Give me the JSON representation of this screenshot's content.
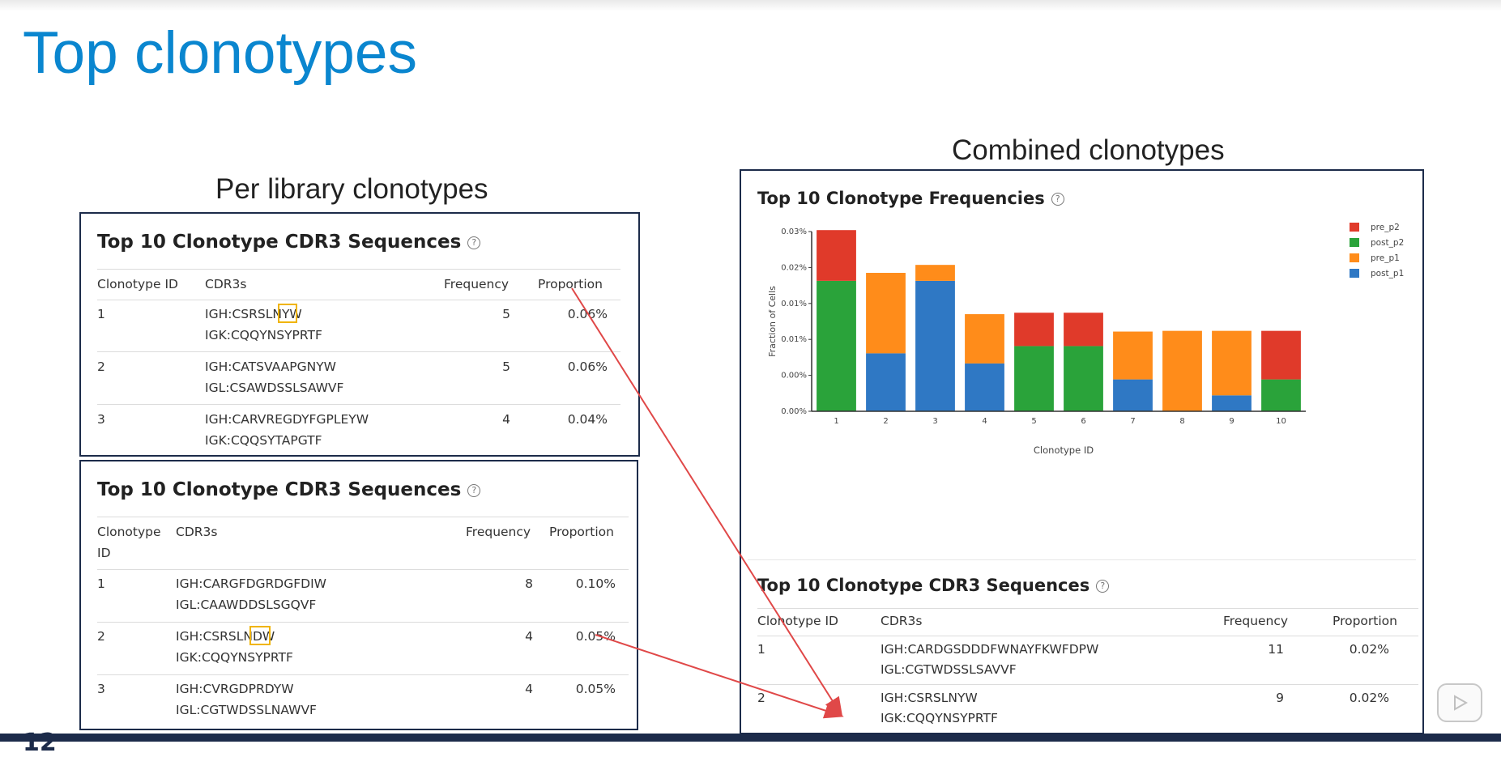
{
  "slide_title": "Top clonotypes",
  "left_section_title": "Per library clonotypes",
  "right_section_title": "Combined clonotypes",
  "help_glyph": "?",
  "table_a": {
    "title": "Top 10 Clonotype CDR3 Sequences",
    "headers": [
      "Clonotype ID",
      "CDR3s",
      "Frequency",
      "Proportion"
    ],
    "rows": [
      {
        "id": "1",
        "cdr3_1": "IGH:CSRSLNYW",
        "cdr3_2": "IGK:CQQYNSYPRTF",
        "freq": "5",
        "prop": "0.06%"
      },
      {
        "id": "2",
        "cdr3_1": "IGH:CATSVAAPGNYW",
        "cdr3_2": "IGL:CSAWDSSLSAWVF",
        "freq": "5",
        "prop": "0.06%"
      },
      {
        "id": "3",
        "cdr3_1": "IGH:CARVREGDYFGPLEYW",
        "cdr3_2": "IGK:CQQSYTAPGTF",
        "freq": "4",
        "prop": "0.04%"
      }
    ]
  },
  "table_b": {
    "title": "Top 10 Clonotype CDR3 Sequences",
    "headers": [
      "Clonotype",
      "CDR3s",
      "Frequency",
      "Proportion"
    ],
    "header_id_line2": "ID",
    "rows": [
      {
        "id": "1",
        "cdr3_1": "IGH:CARGFDGRDGFDIW",
        "cdr3_2": "IGL:CAAWDDSLSGQVF",
        "freq": "8",
        "prop": "0.10%"
      },
      {
        "id": "2",
        "cdr3_1": "IGH:CSRSLNDW",
        "cdr3_2": "IGK:CQQYNSYPRTF",
        "freq": "4",
        "prop": "0.05%"
      },
      {
        "id": "3",
        "cdr3_1": "IGH:CVRGDPRDYW",
        "cdr3_2": "IGL:CGTWDSSLNAWVF",
        "freq": "4",
        "prop": "0.05%"
      }
    ]
  },
  "table_c": {
    "title": "Top 10 Clonotype CDR3 Sequences",
    "headers": [
      "Clonotype ID",
      "CDR3s",
      "Frequency",
      "Proportion"
    ],
    "rows": [
      {
        "id": "1",
        "cdr3_1": "IGH:CARDGSDDDFWNAYFKWFDPW",
        "cdr3_2": "IGL:CGTWDSSLSAVVF",
        "freq": "11",
        "prop": "0.02%"
      },
      {
        "id": "2",
        "cdr3_1": "IGH:CSRSLNYW",
        "cdr3_2": "IGK:CQQYNSYPRTF",
        "freq": "9",
        "prop": "0.02%"
      }
    ]
  },
  "chart_title": "Top 10 Clonotype Frequencies",
  "chart_data": {
    "type": "bar",
    "stacked": true,
    "title": "Top 10 Clonotype Frequencies",
    "xlabel": "Clonotype ID",
    "ylabel": "Fraction of Cells",
    "categories": [
      "1",
      "2",
      "3",
      "4",
      "5",
      "6",
      "7",
      "8",
      "9",
      "10"
    ],
    "y_tick_labels": [
      "0.00%",
      "0.00%",
      "0.01%",
      "0.01%",
      "0.02%",
      "0.03%"
    ],
    "ylim": [
      0,
      0.0248
    ],
    "series": [
      {
        "name": "post_p1",
        "color": "#2f78c4",
        "values": [
          0,
          0.008,
          0.018,
          0.0066,
          0,
          0,
          0.0044,
          0,
          0.0022,
          0
        ]
      },
      {
        "name": "pre_p1",
        "color": "#ff8c1a",
        "values": [
          0,
          0.0111,
          0.0022,
          0.0068,
          0,
          0,
          0.0066,
          0.0111,
          0.0089,
          0
        ]
      },
      {
        "name": "post_p2",
        "color": "#2aa33a",
        "values": [
          0.018,
          0,
          0,
          0,
          0.009,
          0.009,
          0,
          0,
          0,
          0.0044
        ]
      },
      {
        "name": "pre_p2",
        "color": "#e03a2a",
        "values": [
          0.007,
          0,
          0,
          0,
          0.0046,
          0.0046,
          0,
          0,
          0,
          0.0067
        ]
      }
    ],
    "legend": {
      "placement": "top-right",
      "entries": [
        {
          "name": "pre_p2",
          "color": "#e03a2a"
        },
        {
          "name": "post_p2",
          "color": "#2aa33a"
        },
        {
          "name": "pre_p1",
          "color": "#ff8c1a"
        },
        {
          "name": "post_p1",
          "color": "#2f78c4"
        }
      ]
    },
    "grid": false
  },
  "page_number_partial": "12",
  "colors": {
    "title_blue": "#0a86cf",
    "panel_border": "#1c2b4a",
    "highlight": "#f0b400",
    "arrow": "#e04848"
  }
}
